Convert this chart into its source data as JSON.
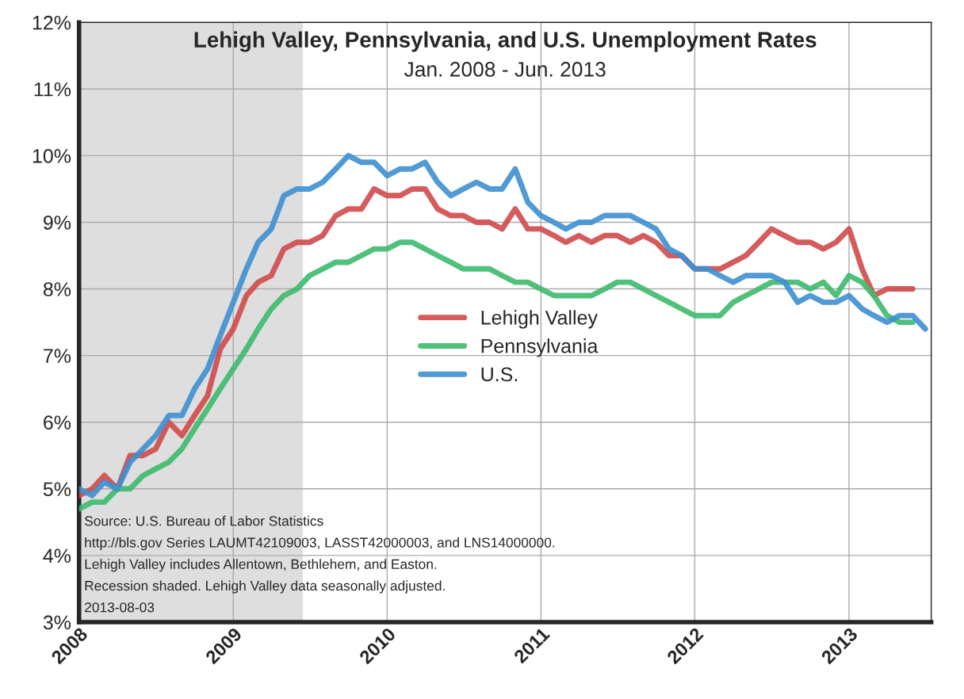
{
  "chart_data": {
    "type": "line",
    "title": "Lehigh Valley, Pennsylvania, and U.S. Unemployment Rates",
    "subtitle": "Jan. 2008 - Jun. 2013",
    "x": [
      "2008-01",
      "2008-02",
      "2008-03",
      "2008-04",
      "2008-05",
      "2008-06",
      "2008-07",
      "2008-08",
      "2008-09",
      "2008-10",
      "2008-11",
      "2008-12",
      "2009-01",
      "2009-02",
      "2009-03",
      "2009-04",
      "2009-05",
      "2009-06",
      "2009-07",
      "2009-08",
      "2009-09",
      "2009-10",
      "2009-11",
      "2009-12",
      "2010-01",
      "2010-02",
      "2010-03",
      "2010-04",
      "2010-05",
      "2010-06",
      "2010-07",
      "2010-08",
      "2010-09",
      "2010-10",
      "2010-11",
      "2010-12",
      "2011-01",
      "2011-02",
      "2011-03",
      "2011-04",
      "2011-05",
      "2011-06",
      "2011-07",
      "2011-08",
      "2011-09",
      "2011-10",
      "2011-11",
      "2011-12",
      "2012-01",
      "2012-02",
      "2012-03",
      "2012-04",
      "2012-05",
      "2012-06",
      "2012-07",
      "2012-08",
      "2012-09",
      "2012-10",
      "2012-11",
      "2012-12",
      "2013-01",
      "2013-02",
      "2013-03",
      "2013-04",
      "2013-05",
      "2013-06",
      "2013-07"
    ],
    "series": [
      {
        "name": "Lehigh Valley",
        "color": "#d04a4a",
        "values": [
          4.9,
          5.0,
          5.2,
          5.0,
          5.5,
          5.5,
          5.6,
          6.0,
          5.8,
          6.1,
          6.4,
          7.1,
          7.4,
          7.9,
          8.1,
          8.2,
          8.6,
          8.7,
          8.7,
          8.8,
          9.1,
          9.2,
          9.2,
          9.5,
          9.4,
          9.4,
          9.5,
          9.5,
          9.2,
          9.1,
          9.1,
          9.0,
          9.0,
          8.9,
          9.2,
          8.9,
          8.9,
          8.8,
          8.7,
          8.8,
          8.7,
          8.8,
          8.8,
          8.7,
          8.8,
          8.7,
          8.5,
          8.5,
          8.3,
          8.3,
          8.3,
          8.4,
          8.5,
          8.7,
          8.9,
          8.8,
          8.7,
          8.7,
          8.6,
          8.7,
          8.9,
          8.3,
          7.9,
          8.0,
          8.0,
          8.0,
          null
        ]
      },
      {
        "name": "Pennsylvania",
        "color": "#3dba6e",
        "values": [
          4.7,
          4.8,
          4.8,
          5.0,
          5.0,
          5.2,
          5.3,
          5.4,
          5.6,
          5.9,
          6.2,
          6.5,
          6.8,
          7.1,
          7.4,
          7.7,
          7.9,
          8.0,
          8.2,
          8.3,
          8.4,
          8.4,
          8.5,
          8.6,
          8.6,
          8.7,
          8.7,
          8.6,
          8.5,
          8.4,
          8.3,
          8.3,
          8.3,
          8.2,
          8.1,
          8.1,
          8.0,
          7.9,
          7.9,
          7.9,
          7.9,
          8.0,
          8.1,
          8.1,
          8.0,
          7.9,
          7.8,
          7.7,
          7.6,
          7.6,
          7.6,
          7.8,
          7.9,
          8.0,
          8.1,
          8.1,
          8.1,
          8.0,
          8.1,
          7.9,
          8.2,
          8.1,
          7.9,
          7.6,
          7.5,
          7.5,
          null
        ]
      },
      {
        "name": "U.S.",
        "color": "#3d8fd0",
        "values": [
          5.0,
          4.9,
          5.1,
          5.0,
          5.4,
          5.6,
          5.8,
          6.1,
          6.1,
          6.5,
          6.8,
          7.3,
          7.8,
          8.3,
          8.7,
          8.9,
          9.4,
          9.5,
          9.5,
          9.6,
          9.8,
          10.0,
          9.9,
          9.9,
          9.7,
          9.8,
          9.8,
          9.9,
          9.6,
          9.4,
          9.5,
          9.6,
          9.5,
          9.5,
          9.8,
          9.3,
          9.1,
          9.0,
          8.9,
          9.0,
          9.0,
          9.1,
          9.1,
          9.1,
          9.0,
          8.9,
          8.6,
          8.5,
          8.3,
          8.3,
          8.2,
          8.1,
          8.2,
          8.2,
          8.2,
          8.1,
          7.8,
          7.9,
          7.8,
          7.8,
          7.9,
          7.7,
          7.6,
          7.5,
          7.6,
          7.6,
          7.4
        ]
      }
    ],
    "xlim": [
      "2008-01-01",
      "2013-07-15"
    ],
    "xticks": [
      "2008",
      "2009",
      "2010",
      "2011",
      "2012",
      "2013"
    ],
    "ylim": [
      3,
      12
    ],
    "yticks": [
      {
        "value": 3,
        "label": "3%"
      },
      {
        "value": 4,
        "label": "4%"
      },
      {
        "value": 5,
        "label": "5%"
      },
      {
        "value": 6,
        "label": "6%"
      },
      {
        "value": 7,
        "label": "7%"
      },
      {
        "value": 8,
        "label": "8%"
      },
      {
        "value": 9,
        "label": "9%"
      },
      {
        "value": 10,
        "label": "10%"
      },
      {
        "value": 11,
        "label": "11%"
      },
      {
        "value": 12,
        "label": "12%"
      }
    ],
    "bands": [
      {
        "axis": "x",
        "from": "2008-01-01",
        "to": "2009-06-15",
        "color": "#dedede"
      }
    ],
    "grid": true,
    "legend": "center",
    "marker": "none",
    "line_style": "solid",
    "annotations": [
      "Source: U.S. Bureau of Labor Statistics",
      "http://bls.gov Series LAUMT42109003, LASST42000003, and LNS14000000.",
      "Lehigh Valley includes Allentown, Bethlehem, and Easton.",
      "Recession shaded. Lehigh Valley data seasonally adjusted.",
      "2013-08-03"
    ]
  }
}
